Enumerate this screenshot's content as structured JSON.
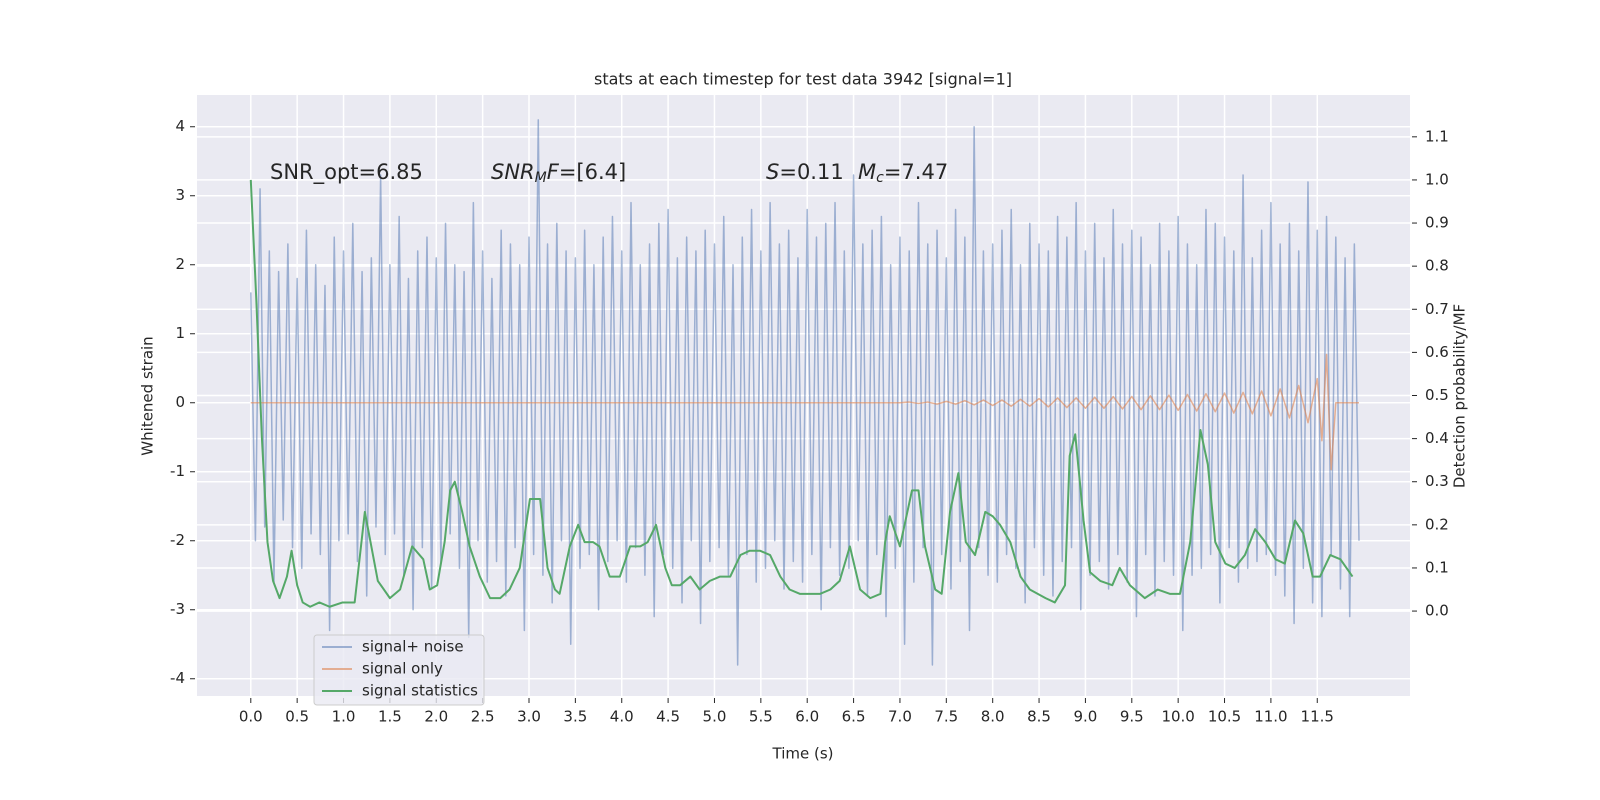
{
  "chart_data": {
    "type": "line",
    "title": "stats at each timestep for test data 3942 [signal=1]",
    "xlabel": "Time (s)",
    "ylabel": "Whitened strain",
    "y2label": "Detection probability/MF",
    "annotations": [
      [
        {
          "text": "SNR_opt=6.85",
          "style": "normal"
        }
      ],
      [
        {
          "text": "SNR",
          "style": "italic"
        },
        {
          "text": "M",
          "style": "italic-sub"
        },
        {
          "text": "F",
          "style": "italic"
        },
        {
          "text": "=[6.4]",
          "style": "normal"
        }
      ],
      [
        {
          "text": "S",
          "style": "italic"
        },
        {
          "text": "=0.11",
          "style": "normal"
        }
      ],
      [
        {
          "text": "M",
          "style": "italic"
        },
        {
          "text": "c",
          "style": "italic-sub"
        },
        {
          "text": "=7.47",
          "style": "normal"
        }
      ]
    ],
    "xlim": [
      -0.58,
      12.5
    ],
    "ylim": [
      -4.25,
      4.46
    ],
    "y2lim": [
      -0.197,
      1.197
    ],
    "xticks": [
      {
        "value": 0,
        "label": "0.0"
      },
      0.5,
      {
        "value": 1,
        "label": "1.0"
      },
      1.5,
      {
        "value": 2,
        "label": "2.0"
      },
      2.5,
      {
        "value": 3,
        "label": "3.0"
      },
      3.5,
      {
        "value": 4,
        "label": "4.0"
      },
      4.5,
      {
        "value": 5,
        "label": "5.0"
      },
      5.5,
      {
        "value": 6,
        "label": "6.0"
      },
      6.5,
      {
        "value": 7,
        "label": "7.0"
      },
      7.5,
      {
        "value": 8,
        "label": "8.0"
      },
      8.5,
      {
        "value": 9,
        "label": "9.0"
      },
      9.5,
      {
        "value": 10,
        "label": "10.0"
      },
      10.5,
      {
        "value": 11,
        "label": "11.0"
      },
      11.5
    ],
    "yticks": [
      -4,
      -3,
      -2,
      -1,
      0,
      1,
      2,
      3,
      4
    ],
    "y2ticks": [
      {
        "value": 0,
        "label": "0.0"
      },
      0.1,
      0.2,
      0.3,
      0.4,
      0.5,
      0.6,
      0.7,
      0.8,
      0.9,
      {
        "value": 1,
        "label": "1.0"
      },
      1.1
    ],
    "grid": true,
    "background": "#eaeaf2",
    "legend": "lower left",
    "series": [
      {
        "name": "signal+ noise",
        "color": "#4c72b0",
        "opacity": 0.5,
        "x": [
          0,
          0.05,
          0.1,
          0.15,
          0.2,
          0.25,
          0.3,
          0.35,
          0.4,
          0.45,
          0.5,
          0.55,
          0.6,
          0.65,
          0.7,
          0.75,
          0.8,
          0.85,
          0.9,
          0.95,
          1,
          1.05,
          1.1,
          1.15,
          1.2,
          1.25,
          1.3,
          1.35,
          1.4,
          1.45,
          1.5,
          1.55,
          1.6,
          1.65,
          1.7,
          1.75,
          1.8,
          1.85,
          1.9,
          1.95,
          2,
          2.05,
          2.1,
          2.15,
          2.2,
          2.25,
          2.3,
          2.35,
          2.4,
          2.45,
          2.5,
          2.55,
          2.6,
          2.65,
          2.7,
          2.75,
          2.8,
          2.85,
          2.9,
          2.95,
          3,
          3.05,
          3.1,
          3.15,
          3.2,
          3.25,
          3.3,
          3.35,
          3.4,
          3.45,
          3.5,
          3.55,
          3.6,
          3.65,
          3.7,
          3.75,
          3.8,
          3.85,
          3.9,
          3.95,
          4,
          4.05,
          4.1,
          4.15,
          4.2,
          4.25,
          4.3,
          4.35,
          4.4,
          4.45,
          4.5,
          4.55,
          4.6,
          4.65,
          4.7,
          4.75,
          4.8,
          4.85,
          4.9,
          4.95,
          5,
          5.05,
          5.1,
          5.15,
          5.2,
          5.25,
          5.3,
          5.35,
          5.4,
          5.45,
          5.5,
          5.55,
          5.6,
          5.65,
          5.7,
          5.75,
          5.8,
          5.85,
          5.9,
          5.95,
          6,
          6.05,
          6.1,
          6.15,
          6.2,
          6.25,
          6.3,
          6.35,
          6.4,
          6.45,
          6.5,
          6.55,
          6.6,
          6.65,
          6.7,
          6.75,
          6.8,
          6.85,
          6.9,
          6.95,
          7,
          7.05,
          7.1,
          7.15,
          7.2,
          7.25,
          7.3,
          7.35,
          7.4,
          7.45,
          7.5,
          7.55,
          7.6,
          7.65,
          7.7,
          7.75,
          7.8,
          7.85,
          7.9,
          7.95,
          8,
          8.05,
          8.1,
          8.15,
          8.2,
          8.25,
          8.3,
          8.35,
          8.4,
          8.45,
          8.5,
          8.55,
          8.6,
          8.65,
          8.7,
          8.75,
          8.8,
          8.85,
          8.9,
          8.95,
          9,
          9.05,
          9.1,
          9.15,
          9.2,
          9.25,
          9.3,
          9.35,
          9.4,
          9.45,
          9.5,
          9.55,
          9.6,
          9.65,
          9.7,
          9.75,
          9.8,
          9.85,
          9.9,
          9.95,
          10,
          10.05,
          10.1,
          10.15,
          10.2,
          10.25,
          10.3,
          10.35,
          10.4,
          10.45,
          10.5,
          10.55,
          10.6,
          10.65,
          10.7,
          10.75,
          10.8,
          10.85,
          10.9,
          10.95,
          11,
          11.05,
          11.1,
          11.15,
          11.2,
          11.25,
          11.3,
          11.35,
          11.4,
          11.45,
          11.5,
          11.55,
          11.6,
          11.65,
          11.7,
          11.75,
          11.8,
          11.85,
          11.9,
          11.95
        ],
        "values": [
          1.6,
          -2.0,
          3.1,
          -1.8,
          2.2,
          -2.6,
          1.9,
          -1.7,
          2.3,
          -2.1,
          1.8,
          -2.4,
          2.5,
          -1.9,
          2.0,
          -2.2,
          1.7,
          -3.3,
          2.4,
          -2.0,
          2.2,
          -1.9,
          2.6,
          -2.3,
          1.9,
          -2.8,
          2.1,
          -1.8,
          3.3,
          -2.2,
          2.0,
          -1.9,
          2.7,
          -2.5,
          1.8,
          -3.0,
          2.2,
          -2.1,
          2.4,
          -2.7,
          2.1,
          -2.3,
          2.6,
          -1.9,
          2.0,
          -2.4,
          1.9,
          -3.4,
          2.9,
          -2.0,
          2.2,
          -2.6,
          1.8,
          -2.3,
          2.5,
          -2.8,
          2.3,
          -2.1,
          2.0,
          -3.3,
          2.4,
          -2.2,
          4.1,
          -2.5,
          2.3,
          -2.9,
          2.6,
          -2.0,
          2.2,
          -3.5,
          2.1,
          -2.4,
          2.5,
          -2.2,
          2.0,
          -3.0,
          2.4,
          -2.3,
          2.7,
          -2.0,
          2.2,
          -2.6,
          2.9,
          -2.1,
          2.0,
          -2.5,
          2.3,
          -3.1,
          2.6,
          -2.2,
          2.8,
          -2.4,
          2.1,
          -2.9,
          2.4,
          -2.0,
          2.2,
          -3.2,
          2.5,
          -2.3,
          2.3,
          -2.1,
          2.7,
          -2.5,
          2.0,
          -3.8,
          2.4,
          -2.2,
          2.8,
          -2.6,
          2.2,
          -2.4,
          2.9,
          -2.0,
          2.3,
          -2.7,
          2.5,
          -2.3,
          2.1,
          -2.6,
          2.8,
          -2.2,
          2.4,
          -3.0,
          2.6,
          -2.1,
          2.9,
          -2.5,
          2.2,
          -2.4,
          3.3,
          -2.0,
          2.3,
          -2.8,
          2.5,
          -2.2,
          2.7,
          -3.1,
          2.0,
          -2.4,
          2.4,
          -3.5,
          2.2,
          -2.6,
          2.9,
          -2.1,
          2.3,
          -3.8,
          2.5,
          -2.2,
          2.1,
          -2.7,
          2.8,
          -2.3,
          2.4,
          -3.3,
          4.0,
          -2.1,
          2.2,
          -2.5,
          2.3,
          -2.6,
          2.5,
          -2.2,
          2.8,
          -2.4,
          2.0,
          -2.9,
          2.6,
          -2.1,
          2.3,
          -2.5,
          2.2,
          -2.8,
          2.7,
          -2.3,
          2.4,
          -2.1,
          2.9,
          -3.0,
          2.2,
          -2.5,
          2.6,
          -2.3,
          2.1,
          -2.7,
          2.8,
          -2.2,
          2.3,
          -2.6,
          2.5,
          -3.1,
          2.4,
          -2.2,
          2.0,
          -2.8,
          2.6,
          -2.3,
          2.2,
          -2.5,
          2.7,
          -3.3,
          2.3,
          -2.5,
          2.0,
          -2.4,
          2.8,
          -2.2,
          2.6,
          -2.9,
          2.4,
          -2.1,
          2.2,
          -2.6,
          3.3,
          -2.4,
          2.1,
          -2.3,
          2.5,
          -2.2,
          2.9,
          -2.5,
          2.3,
          -2.8,
          2.6,
          -3.2,
          2.2,
          -2.4,
          3.2,
          -2.9,
          2.5,
          -3.1,
          2.7,
          -2.2,
          2.4,
          -2.7,
          2.1,
          -3.1,
          2.3,
          -2.0
        ]
      },
      {
        "name": "signal only",
        "color": "#dd8452",
        "opacity": 0.6,
        "x": [
          0,
          7.0,
          7.1,
          7.2,
          7.3,
          7.4,
          7.5,
          7.6,
          7.7,
          7.8,
          7.9,
          8.0,
          8.1,
          8.2,
          8.3,
          8.4,
          8.5,
          8.6,
          8.7,
          8.8,
          8.9,
          9.0,
          9.1,
          9.2,
          9.3,
          9.4,
          9.5,
          9.6,
          9.7,
          9.8,
          9.9,
          10.0,
          10.1,
          10.2,
          10.3,
          10.4,
          10.5,
          10.6,
          10.7,
          10.8,
          10.9,
          11.0,
          11.1,
          11.2,
          11.3,
          11.4,
          11.5,
          11.55,
          11.6,
          11.65,
          11.7,
          11.95
        ],
        "values": [
          0,
          0,
          0.01,
          -0.01,
          0.01,
          -0.02,
          0.02,
          -0.02,
          0.03,
          -0.03,
          0.04,
          -0.04,
          0.04,
          -0.05,
          0.05,
          -0.05,
          0.06,
          -0.06,
          0.07,
          -0.07,
          0.07,
          -0.08,
          0.08,
          -0.08,
          0.09,
          -0.09,
          0.09,
          -0.1,
          0.1,
          -0.1,
          0.11,
          -0.11,
          0.12,
          -0.12,
          0.13,
          -0.13,
          0.14,
          -0.15,
          0.15,
          -0.16,
          0.17,
          -0.19,
          0.2,
          -0.22,
          0.25,
          -0.29,
          0.35,
          -0.55,
          0.7,
          -0.97,
          0,
          0
        ]
      },
      {
        "name": "signal statistics",
        "color": "#55a868",
        "opacity": 1,
        "axis": "y2",
        "x": [
          0,
          0.06,
          0.12,
          0.18,
          0.24,
          0.31,
          0.39,
          0.44,
          0.5,
          0.56,
          0.64,
          0.74,
          0.85,
          0.99,
          1.12,
          1.23,
          1.37,
          1.5,
          1.61,
          1.74,
          1.86,
          1.93,
          2.01,
          2.09,
          2.15,
          2.2,
          2.28,
          2.36,
          2.47,
          2.58,
          2.69,
          2.79,
          2.9,
          3.01,
          3.12,
          3.2,
          3.28,
          3.33,
          3.44,
          3.53,
          3.6,
          3.69,
          3.76,
          3.87,
          3.98,
          4.09,
          4.2,
          4.28,
          4.37,
          4.47,
          4.54,
          4.63,
          4.74,
          4.84,
          4.95,
          5.06,
          5.17,
          5.28,
          5.38,
          5.49,
          5.6,
          5.71,
          5.81,
          5.92,
          6.14,
          6.25,
          6.35,
          6.46,
          6.57,
          6.68,
          6.79,
          6.84,
          6.89,
          7.0,
          7.13,
          7.2,
          7.27,
          7.38,
          7.45,
          7.54,
          7.63,
          7.71,
          7.81,
          7.92,
          8.0,
          8.08,
          8.19,
          8.3,
          8.4,
          8.57,
          8.67,
          8.78,
          8.83,
          8.89,
          8.98,
          9.05,
          9.16,
          9.29,
          9.37,
          9.48,
          9.64,
          9.78,
          9.91,
          10.02,
          10.13,
          10.24,
          10.32,
          10.4,
          10.51,
          10.61,
          10.72,
          10.83,
          10.94,
          11.05,
          11.15,
          11.26,
          11.35,
          11.45,
          11.53,
          11.64,
          11.75,
          11.88
        ],
        "values": [
          1.0,
          0.72,
          0.4,
          0.16,
          0.07,
          0.03,
          0.08,
          0.14,
          0.06,
          0.02,
          0.01,
          0.02,
          0.01,
          0.02,
          0.02,
          0.23,
          0.07,
          0.03,
          0.05,
          0.15,
          0.12,
          0.05,
          0.06,
          0.16,
          0.28,
          0.3,
          0.23,
          0.15,
          0.08,
          0.03,
          0.03,
          0.05,
          0.1,
          0.26,
          0.26,
          0.1,
          0.05,
          0.04,
          0.15,
          0.2,
          0.16,
          0.16,
          0.15,
          0.08,
          0.08,
          0.15,
          0.15,
          0.16,
          0.2,
          0.1,
          0.06,
          0.06,
          0.08,
          0.05,
          0.07,
          0.08,
          0.08,
          0.13,
          0.14,
          0.14,
          0.13,
          0.08,
          0.05,
          0.04,
          0.04,
          0.05,
          0.07,
          0.15,
          0.05,
          0.03,
          0.04,
          0.16,
          0.22,
          0.15,
          0.28,
          0.28,
          0.15,
          0.05,
          0.04,
          0.23,
          0.32,
          0.16,
          0.13,
          0.23,
          0.22,
          0.2,
          0.16,
          0.08,
          0.05,
          0.03,
          0.02,
          0.06,
          0.36,
          0.41,
          0.21,
          0.09,
          0.07,
          0.06,
          0.1,
          0.06,
          0.03,
          0.05,
          0.04,
          0.04,
          0.16,
          0.42,
          0.34,
          0.16,
          0.11,
          0.1,
          0.13,
          0.19,
          0.16,
          0.12,
          0.11,
          0.21,
          0.18,
          0.08,
          0.08,
          0.13,
          0.12,
          0.08
        ]
      }
    ]
  }
}
